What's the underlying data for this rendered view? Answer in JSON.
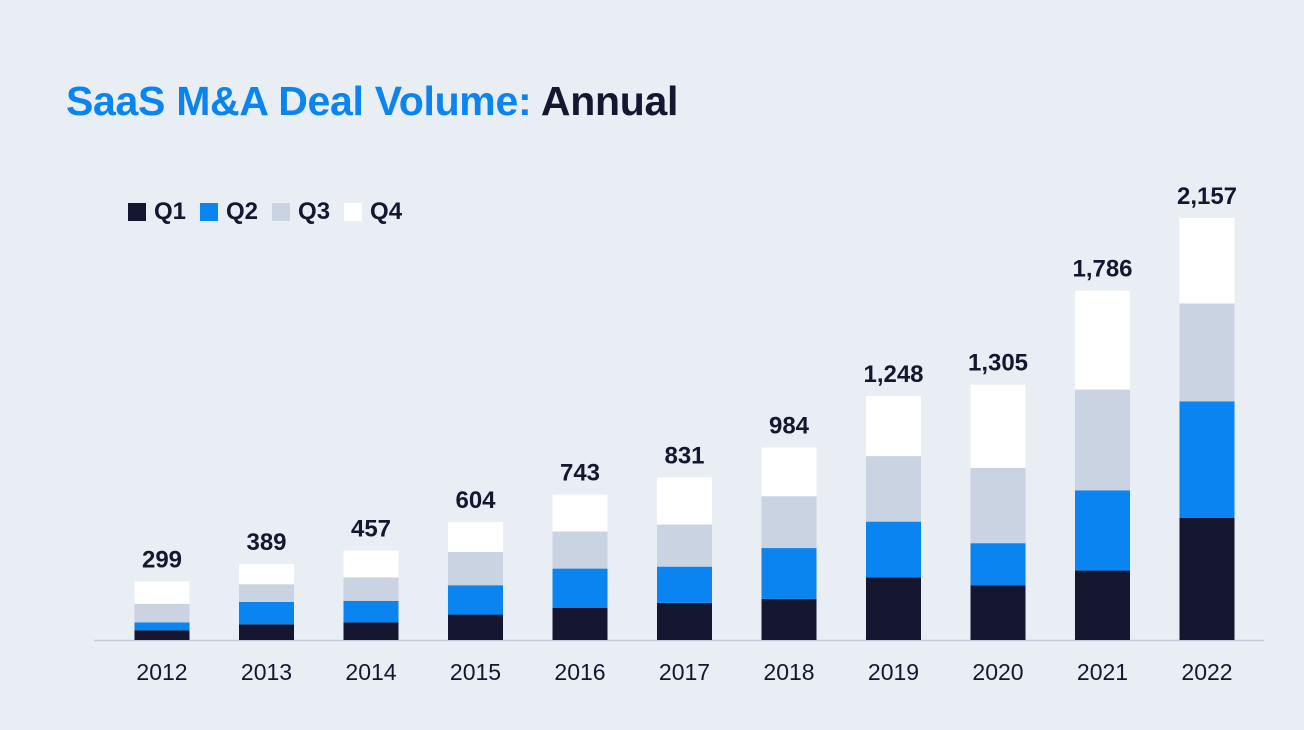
{
  "title": {
    "accent": "SaaS M&A Deal Volume:",
    "rest": "Annual"
  },
  "colors": {
    "Q1": "#151730",
    "Q2": "#0a84f0",
    "Q3": "#c9d3e2",
    "Q4": "#ffffff",
    "axis": "#c3cbd8"
  },
  "chart_data": {
    "type": "bar",
    "stacked": true,
    "categories": [
      "2012",
      "2013",
      "2014",
      "2015",
      "2016",
      "2017",
      "2018",
      "2019",
      "2020",
      "2021",
      "2022"
    ],
    "series": [
      {
        "name": "Q1",
        "values": [
          50,
          80,
          90,
          130,
          165,
          190,
          210,
          320,
          280,
          355,
          625
        ]
      },
      {
        "name": "Q2",
        "values": [
          40,
          115,
          110,
          150,
          200,
          185,
          260,
          285,
          215,
          410,
          595
        ]
      },
      {
        "name": "Q3",
        "values": [
          95,
          90,
          120,
          170,
          190,
          215,
          265,
          335,
          385,
          515,
          500
        ]
      },
      {
        "name": "Q4",
        "values": [
          114,
          104,
          137,
          154,
          188,
          241,
          249,
          308,
          425,
          506,
          437
        ]
      }
    ],
    "totals": [
      "299",
      "389",
      "457",
      "604",
      "743",
      "831",
      "984",
      "1,248",
      "1,305",
      "1,786",
      "2,157"
    ],
    "ylim": [
      0,
      2157
    ],
    "legend": "top-left",
    "grid": false
  }
}
